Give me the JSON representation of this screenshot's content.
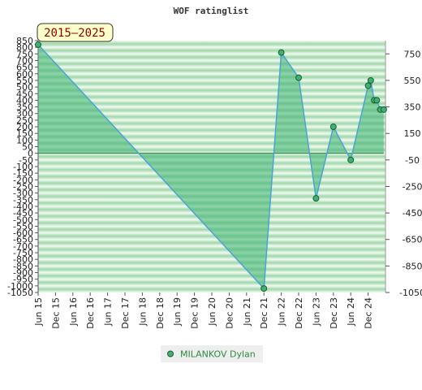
{
  "chart_data": {
    "type": "area",
    "title": "WOF ratinglist",
    "badge": "2015–2025",
    "x_labels": [
      "Jun 15",
      "Dec 15",
      "Jun 16",
      "Dec 16",
      "Jun 17",
      "Dec 17",
      "Jun 18",
      "Dec 18",
      "Jun 19",
      "Dec 19",
      "Jun 20",
      "Dec 20",
      "Jun 21",
      "Dec 21",
      "Jun 22",
      "Dec 22",
      "Jun 23",
      "Dec 23",
      "Jun 24",
      "Dec 24"
    ],
    "left_ticks": [
      850,
      800,
      750,
      700,
      650,
      600,
      550,
      500,
      450,
      400,
      350,
      300,
      250,
      200,
      150,
      100,
      50,
      0,
      -50,
      -100,
      -150,
      -200,
      -250,
      -300,
      -350,
      -400,
      -450,
      -500,
      -550,
      -600,
      -650,
      -700,
      -750,
      -800,
      -850,
      -900,
      -950,
      -1000,
      -1050
    ],
    "right_ticks": [
      750,
      550,
      350,
      150,
      -50,
      -250,
      -450,
      -650,
      -850,
      -1050
    ],
    "ylim": [
      -1050,
      850
    ],
    "series": [
      {
        "name": "MILANKOV Dylan",
        "color": "#3cb371",
        "points": [
          {
            "x": 0,
            "y": 820
          },
          {
            "x": 13.0,
            "y": -1020
          },
          {
            "x": 14.0,
            "y": 760
          },
          {
            "x": 15.0,
            "y": 570
          },
          {
            "x": 16.0,
            "y": -340
          },
          {
            "x": 17.0,
            "y": 200
          },
          {
            "x": 18.0,
            "y": -50
          },
          {
            "x": 19.0,
            "y": 510
          },
          {
            "x": 19.15,
            "y": 550
          },
          {
            "x": 19.35,
            "y": 400
          },
          {
            "x": 19.5,
            "y": 400
          },
          {
            "x": 19.7,
            "y": 330
          },
          {
            "x": 19.9,
            "y": 330
          }
        ]
      }
    ],
    "legend_position": "bottom"
  }
}
